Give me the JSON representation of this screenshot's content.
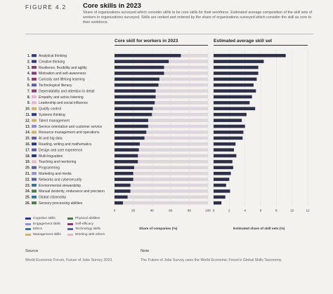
{
  "figure_label": "FIGURE 4.2",
  "title": "Core skills in 2023",
  "subtitle": "Share of organizations surveyed which consider skills to be core skills for their workforce. Estimated average composition of the skill sets of workers in organizations surveyed. Skills are ranked and ordered by the share of organizations surveyed which consider the skill as core to their workforce.",
  "panel_left_title": "Core skill for workers in 2023",
  "panel_right_title": "Estimated average skill set",
  "xlabel_left": "Share of companies (%)",
  "xlabel_right": "Estimated share of skill sets (%)",
  "source_head": "Source",
  "source_text": "World Economic Forum, Future of Jobs Survey 2023.",
  "note_head": "Note",
  "note_text": "The Future of Jobs Survey uses the World Economic Forum's Global Skills Taxonomy.",
  "colors": {
    "cognitive": "#2b3a8c",
    "engagement": "#8f8fd6",
    "ethics": "#2e79a3",
    "management": "#d6b06a",
    "physical": "#4c7a4e",
    "self_efficacy": "#8a3a77",
    "technology": "#5a5fa8",
    "working_with_others": "#e7b3cf",
    "bar": "#2d2e48",
    "track": "#ddd6dd"
  },
  "legend": [
    {
      "label": "Cognitive skills",
      "color_key": "cognitive"
    },
    {
      "label": "Engagement skills",
      "color_key": "engagement"
    },
    {
      "label": "Ethics",
      "color_key": "ethics"
    },
    {
      "label": "Management skills",
      "color_key": "management"
    },
    {
      "label": "Physical abilities",
      "color_key": "physical"
    },
    {
      "label": "Self-efficacy",
      "color_key": "self_efficacy"
    },
    {
      "label": "Technology skills",
      "color_key": "technology"
    },
    {
      "label": "Working with others",
      "color_key": "working_with_others"
    }
  ],
  "chart_data": [
    {
      "type": "bar",
      "orientation": "horizontal",
      "title": "Core skill for workers in 2023",
      "xlabel": "Share of companies (%)",
      "xlim": [
        0,
        100
      ],
      "xticks": [
        0,
        20,
        40,
        60,
        80,
        100
      ],
      "rows": [
        {
          "rank": "1.",
          "skill": "Analytical thinking",
          "category": "cognitive",
          "value": 71
        },
        {
          "rank": "2.",
          "skill": "Creative thinking",
          "category": "cognitive",
          "value": 58
        },
        {
          "rank": "3.",
          "skill": "Resilience, flexibility and agility",
          "category": "self_efficacy",
          "value": 53
        },
        {
          "rank": "4.",
          "skill": "Motivation and self-awareness",
          "category": "self_efficacy",
          "value": 53
        },
        {
          "rank": "5.",
          "skill": "Curiosity and lifelong learning",
          "category": "self_efficacy",
          "value": 48
        },
        {
          "rank": "6.",
          "skill": "Technological literacy",
          "category": "technology",
          "value": 47
        },
        {
          "rank": "7.",
          "skill": "Dependability and attention to detail",
          "category": "self_efficacy",
          "value": 44
        },
        {
          "rank": "8.",
          "skill": "Empathy and active listening",
          "category": "working_with_others",
          "value": 44
        },
        {
          "rank": "9.",
          "skill": "Leadership and social influence",
          "category": "working_with_others",
          "value": 43
        },
        {
          "rank": "10.",
          "skill": "Quality control",
          "category": "management",
          "value": 41
        },
        {
          "rank": "11.",
          "skill": "Systems thinking",
          "category": "cognitive",
          "value": 40
        },
        {
          "rank": "12.",
          "skill": "Talent management",
          "category": "management",
          "value": 36
        },
        {
          "rank": "13.",
          "skill": "Service orientation and customer service",
          "category": "engagement",
          "value": 36
        },
        {
          "rank": "14.",
          "skill": "Resource management and operations",
          "category": "management",
          "value": 34
        },
        {
          "rank": "15.",
          "skill": "AI and big data",
          "category": "technology",
          "value": 32
        },
        {
          "rank": "16.",
          "skill": "Reading, writing and mathematics",
          "category": "cognitive",
          "value": 27
        },
        {
          "rank": "17.",
          "skill": "Design and user experience",
          "category": "technology",
          "value": 26
        },
        {
          "rank": "18.",
          "skill": "Multi-lingualism",
          "category": "cognitive",
          "value": 25
        },
        {
          "rank": "19.",
          "skill": "Teaching and mentoring",
          "category": "working_with_others",
          "value": 25
        },
        {
          "rank": "20.",
          "skill": "Programming",
          "category": "technology",
          "value": 21
        },
        {
          "rank": "21.",
          "skill": "Marketing and media",
          "category": "engagement",
          "value": 20
        },
        {
          "rank": "22.",
          "skill": "Networks and cybersecurity",
          "category": "technology",
          "value": 20
        },
        {
          "rank": "23.",
          "skill": "Environmental stewardship",
          "category": "ethics",
          "value": 17
        },
        {
          "rank": "24.",
          "skill": "Manual dexterity, endurance and precision",
          "category": "physical",
          "value": 17
        },
        {
          "rank": "25.",
          "skill": "Global citizenship",
          "category": "ethics",
          "value": 14
        },
        {
          "rank": "26.",
          "skill": "Sensory-processing abilities",
          "category": "physical",
          "value": 9
        }
      ]
    },
    {
      "type": "bar",
      "orientation": "horizontal",
      "title": "Estimated average skill set",
      "xlabel": "Estimated share of skill sets (%)",
      "xlim": [
        0,
        12
      ],
      "xticks": [
        0,
        2,
        4,
        6,
        8,
        10,
        12
      ],
      "categories": [
        "Analytical thinking",
        "Creative thinking",
        "Resilience, flexibility and agility",
        "Motivation and self-awareness",
        "Curiosity and lifelong learning",
        "Technological literacy",
        "Dependability and attention to detail",
        "Empathy and active listening",
        "Leadership and social influence",
        "Quality control",
        "Systems thinking",
        "Talent management",
        "Service orientation and customer service",
        "Resource management and operations",
        "AI and big data",
        "Reading, writing and mathematics",
        "Design and user experience",
        "Multi-lingualism",
        "Teaching and mentoring",
        "Programming",
        "Marketing and media",
        "Networks and cybersecurity",
        "Environmental stewardship",
        "Manual dexterity, endurance and precision",
        "Global citizenship",
        "Sensory-processing abilities"
      ],
      "values": [
        9.2,
        6.4,
        5.7,
        5.7,
        5.5,
        5.1,
        5.4,
        4.9,
        4.6,
        5.3,
        4.2,
        3.6,
        4.0,
        3.8,
        3.7,
        2.8,
        2.6,
        2.9,
        2.4,
        2.5,
        2.2,
        2.0,
        1.6,
        2.1,
        1.5,
        1.0
      ]
    }
  ]
}
